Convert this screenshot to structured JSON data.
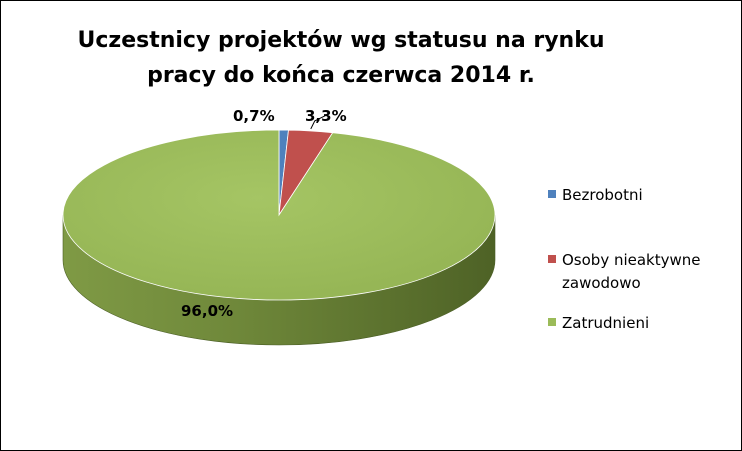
{
  "chart_data": {
    "type": "pie",
    "title_lines": [
      "Uczestnicy projektów wg statusu na rynku",
      "pracy do końca czerwca 2014 r."
    ],
    "categories": [
      "Bezrobotni",
      "Osoby nieaktywne zawodowo",
      "Zatrudnieni"
    ],
    "values": [
      0.7,
      3.3,
      96.0
    ],
    "data_labels": [
      "0,7%",
      "3,3%",
      "96,0%"
    ],
    "colors": [
      "#4F81BD",
      "#C0504D",
      "#9BBB59"
    ],
    "legend_position": "right",
    "three_d": true
  }
}
